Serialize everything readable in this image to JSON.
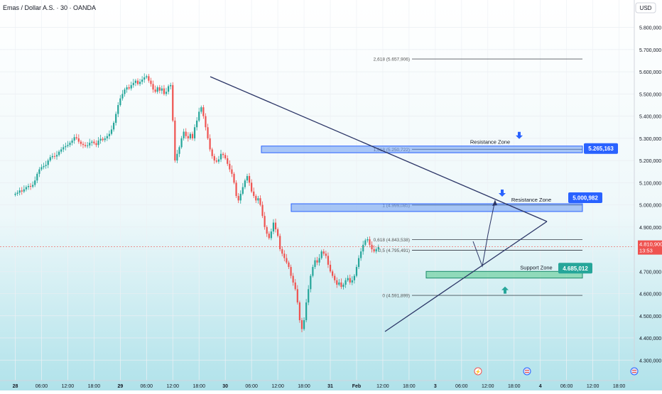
{
  "header": {
    "title": "Emas / Dollar A.S. · 30 · OANDA"
  },
  "currency_button": {
    "label": "USD"
  },
  "colors": {
    "bg_top": "#ffffff",
    "bg_bottom": "#b3e3ea",
    "up": "#26a69a",
    "down": "#ef5350",
    "trendline": "#2b3566",
    "zone_blue": "#6a9af0",
    "zone_blue_border": "#2962ff",
    "zone_green": "#53c98b",
    "zone_green_border": "#1a8a6a",
    "price_badge": "#ef5350",
    "label_blue": "#2962ff",
    "label_green": "#26a69a"
  },
  "chart_data": {
    "type": "candlestick",
    "instrument": "Emas / Dollar A.S.",
    "timeframe": "30",
    "source": "OANDA",
    "ylim": [
      4200000,
      5900000
    ],
    "y_ticks": [
      "5.800,000",
      "5.700,000",
      "5.600,000",
      "5.500,000",
      "5.400,000",
      "5.300,000",
      "5.200,000",
      "5.100,000",
      "5.000,000",
      "4.900,000",
      "4.800,000",
      "4.700,000",
      "4.600,000",
      "4.500,000",
      "4.400,000",
      "4.300,000"
    ],
    "y_tick_values": [
      5800000,
      5700000,
      5600000,
      5500000,
      5400000,
      5300000,
      5200000,
      5100000,
      5000000,
      4900000,
      4800000,
      4700000,
      4600000,
      4500000,
      4400000,
      4300000
    ],
    "x_labels": [
      "28",
      "06:00",
      "12:00",
      "18:00",
      "29",
      "06:00",
      "12:00",
      "18:00",
      "30",
      "06:00",
      "12:00",
      "18:00",
      "31",
      "Feb",
      "12:00",
      "18:00",
      "3",
      "06:00",
      "12:00",
      "18:00",
      "4",
      "06:00",
      "12:00",
      "18:00"
    ],
    "x_label_slots": [
      0,
      12,
      24,
      36,
      48,
      60,
      72,
      84,
      96,
      108,
      120,
      132,
      144,
      156,
      168,
      180,
      192,
      204,
      216,
      228,
      240,
      252,
      264,
      276
    ],
    "candles_close": [
      5050000,
      5055000,
      5065000,
      5060000,
      5070000,
      5080000,
      5085000,
      5082000,
      5090000,
      5110000,
      5140000,
      5160000,
      5170000,
      5175000,
      5180000,
      5200000,
      5215000,
      5220000,
      5218000,
      5225000,
      5240000,
      5250000,
      5260000,
      5265000,
      5270000,
      5280000,
      5290000,
      5305000,
      5300000,
      5285000,
      5275000,
      5270000,
      5265000,
      5268000,
      5280000,
      5285000,
      5278000,
      5270000,
      5290000,
      5298000,
      5292000,
      5300000,
      5310000,
      5320000,
      5340000,
      5370000,
      5410000,
      5450000,
      5480000,
      5500000,
      5520000,
      5530000,
      5525000,
      5540000,
      5550000,
      5560000,
      5545000,
      5555000,
      5565000,
      5575000,
      5580000,
      5560000,
      5545000,
      5520000,
      5510000,
      5530000,
      5515000,
      5525000,
      5500000,
      5510000,
      5535000,
      5540000,
      5380000,
      5200000,
      5230000,
      5260000,
      5300000,
      5330000,
      5310000,
      5300000,
      5320000,
      5300000,
      5350000,
      5380000,
      5420000,
      5440000,
      5400000,
      5350000,
      5300000,
      5250000,
      5220000,
      5200000,
      5195000,
      5205000,
      5230000,
      5225000,
      5210000,
      5185000,
      5160000,
      5140000,
      5100000,
      5040000,
      5020000,
      5050000,
      5080000,
      5110000,
      5130000,
      5100000,
      5060000,
      5040000,
      5020000,
      5030000,
      5000000,
      4950000,
      4900000,
      4870000,
      4850000,
      4880000,
      4920000,
      4890000,
      4860000,
      4800000,
      4780000,
      4760000,
      4740000,
      4720000,
      4680000,
      4650000,
      4620000,
      4560000,
      4480000,
      4440000,
      4480000,
      4560000,
      4620000,
      4680000,
      4720000,
      4750000,
      4740000,
      4760000,
      4790000,
      4780000,
      4770000,
      4730000,
      4700000,
      4680000,
      4660000,
      4640000,
      4650000,
      4630000,
      4640000,
      4660000,
      4670000,
      4650000,
      4660000,
      4680000,
      4720000,
      4760000,
      4790000,
      4820000,
      4840000,
      4845000,
      4820000,
      4800000,
      4790000,
      4800000,
      4810900
    ],
    "series": [],
    "fibonacci": [
      {
        "label": "2,618 (5.657,906)",
        "value": 5657906
      },
      {
        "label": "1,618 (5.250,722)",
        "value": 5250722
      },
      {
        "label": "1 (4.999,085)",
        "value": 4999085
      },
      {
        "label": "0,618 (4.843,538)",
        "value": 4843538
      },
      {
        "label": "0,5 (4.795,491)",
        "value": 4795491
      },
      {
        "label": "0 (4.591,899)",
        "value": 4591899
      }
    ],
    "zones": [
      {
        "name": "Resistance Zone",
        "top": 5265163,
        "bottom": 5235000,
        "tag": "5.265,163"
      },
      {
        "name": "Resistance Zone",
        "top": 5005000,
        "bottom": 4970000,
        "tag": "5.000,982"
      },
      {
        "name": "Support Zone",
        "top": 4700000,
        "bottom": 4670000,
        "tag": "4.685,012"
      }
    ],
    "current_price": {
      "value": 4810900,
      "label": "4.810,900",
      "countdown": "13:53"
    },
    "grid": true,
    "legend": "none"
  }
}
